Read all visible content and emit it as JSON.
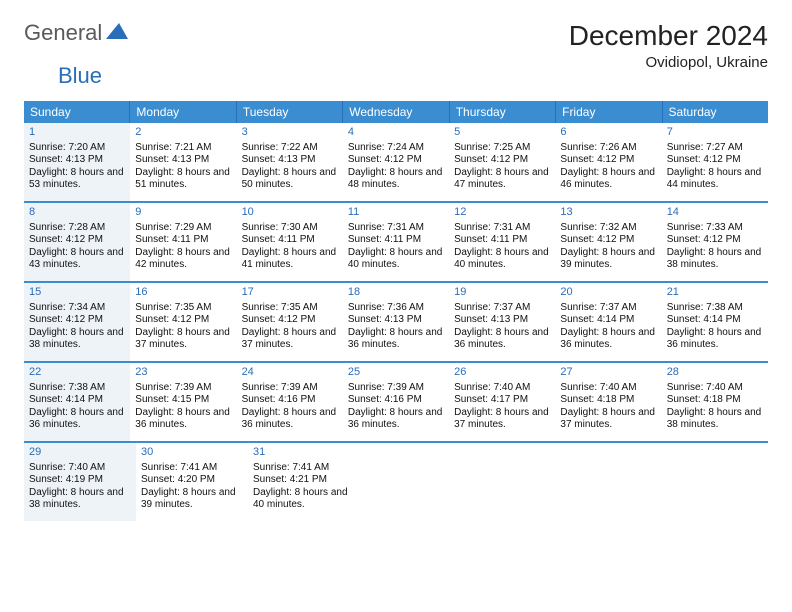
{
  "logo": {
    "part1": "General",
    "part2": "Blue"
  },
  "title": "December 2024",
  "location": "Ovidiopol, Ukraine",
  "colors": {
    "header_bg": "#3a8dd0",
    "divider": "#3a8dd0",
    "shade_bg": "#eef3f8",
    "daynum_color": "#2a6db8",
    "logo_gray": "#5a5a5a",
    "logo_blue": "#2a6db8"
  },
  "day_names": [
    "Sunday",
    "Monday",
    "Tuesday",
    "Wednesday",
    "Thursday",
    "Friday",
    "Saturday"
  ],
  "weeks": [
    [
      {
        "n": "1",
        "sr": "7:20 AM",
        "ss": "4:13 PM",
        "dl": "8 hours and 53 minutes.",
        "shade": true
      },
      {
        "n": "2",
        "sr": "7:21 AM",
        "ss": "4:13 PM",
        "dl": "8 hours and 51 minutes."
      },
      {
        "n": "3",
        "sr": "7:22 AM",
        "ss": "4:13 PM",
        "dl": "8 hours and 50 minutes."
      },
      {
        "n": "4",
        "sr": "7:24 AM",
        "ss": "4:12 PM",
        "dl": "8 hours and 48 minutes."
      },
      {
        "n": "5",
        "sr": "7:25 AM",
        "ss": "4:12 PM",
        "dl": "8 hours and 47 minutes."
      },
      {
        "n": "6",
        "sr": "7:26 AM",
        "ss": "4:12 PM",
        "dl": "8 hours and 46 minutes."
      },
      {
        "n": "7",
        "sr": "7:27 AM",
        "ss": "4:12 PM",
        "dl": "8 hours and 44 minutes."
      }
    ],
    [
      {
        "n": "8",
        "sr": "7:28 AM",
        "ss": "4:12 PM",
        "dl": "8 hours and 43 minutes.",
        "shade": true
      },
      {
        "n": "9",
        "sr": "7:29 AM",
        "ss": "4:11 PM",
        "dl": "8 hours and 42 minutes."
      },
      {
        "n": "10",
        "sr": "7:30 AM",
        "ss": "4:11 PM",
        "dl": "8 hours and 41 minutes."
      },
      {
        "n": "11",
        "sr": "7:31 AM",
        "ss": "4:11 PM",
        "dl": "8 hours and 40 minutes."
      },
      {
        "n": "12",
        "sr": "7:31 AM",
        "ss": "4:11 PM",
        "dl": "8 hours and 40 minutes."
      },
      {
        "n": "13",
        "sr": "7:32 AM",
        "ss": "4:12 PM",
        "dl": "8 hours and 39 minutes."
      },
      {
        "n": "14",
        "sr": "7:33 AM",
        "ss": "4:12 PM",
        "dl": "8 hours and 38 minutes."
      }
    ],
    [
      {
        "n": "15",
        "sr": "7:34 AM",
        "ss": "4:12 PM",
        "dl": "8 hours and 38 minutes.",
        "shade": true
      },
      {
        "n": "16",
        "sr": "7:35 AM",
        "ss": "4:12 PM",
        "dl": "8 hours and 37 minutes."
      },
      {
        "n": "17",
        "sr": "7:35 AM",
        "ss": "4:12 PM",
        "dl": "8 hours and 37 minutes."
      },
      {
        "n": "18",
        "sr": "7:36 AM",
        "ss": "4:13 PM",
        "dl": "8 hours and 36 minutes."
      },
      {
        "n": "19",
        "sr": "7:37 AM",
        "ss": "4:13 PM",
        "dl": "8 hours and 36 minutes."
      },
      {
        "n": "20",
        "sr": "7:37 AM",
        "ss": "4:14 PM",
        "dl": "8 hours and 36 minutes."
      },
      {
        "n": "21",
        "sr": "7:38 AM",
        "ss": "4:14 PM",
        "dl": "8 hours and 36 minutes."
      }
    ],
    [
      {
        "n": "22",
        "sr": "7:38 AM",
        "ss": "4:14 PM",
        "dl": "8 hours and 36 minutes.",
        "shade": true
      },
      {
        "n": "23",
        "sr": "7:39 AM",
        "ss": "4:15 PM",
        "dl": "8 hours and 36 minutes."
      },
      {
        "n": "24",
        "sr": "7:39 AM",
        "ss": "4:16 PM",
        "dl": "8 hours and 36 minutes."
      },
      {
        "n": "25",
        "sr": "7:39 AM",
        "ss": "4:16 PM",
        "dl": "8 hours and 36 minutes."
      },
      {
        "n": "26",
        "sr": "7:40 AM",
        "ss": "4:17 PM",
        "dl": "8 hours and 37 minutes."
      },
      {
        "n": "27",
        "sr": "7:40 AM",
        "ss": "4:18 PM",
        "dl": "8 hours and 37 minutes."
      },
      {
        "n": "28",
        "sr": "7:40 AM",
        "ss": "4:18 PM",
        "dl": "8 hours and 38 minutes."
      }
    ],
    [
      {
        "n": "29",
        "sr": "7:40 AM",
        "ss": "4:19 PM",
        "dl": "8 hours and 38 minutes.",
        "shade": true
      },
      {
        "n": "30",
        "sr": "7:41 AM",
        "ss": "4:20 PM",
        "dl": "8 hours and 39 minutes."
      },
      {
        "n": "31",
        "sr": "7:41 AM",
        "ss": "4:21 PM",
        "dl": "8 hours and 40 minutes."
      },
      null,
      null,
      null,
      null
    ]
  ],
  "labels": {
    "sunrise": "Sunrise:",
    "sunset": "Sunset:",
    "daylight": "Daylight:"
  }
}
